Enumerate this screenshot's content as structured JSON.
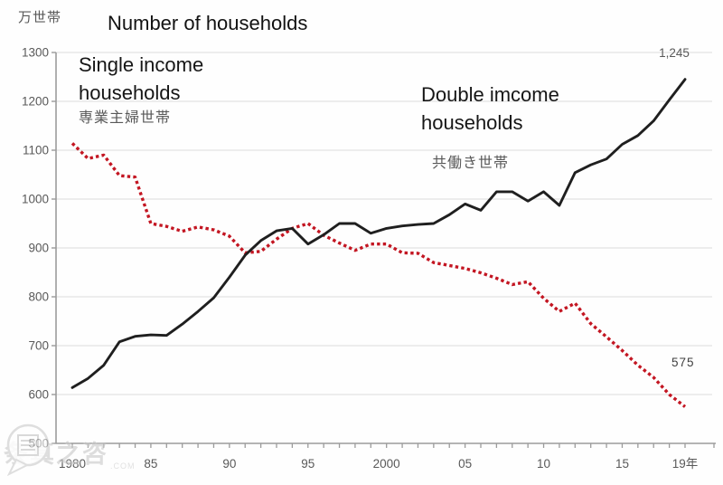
{
  "chart": {
    "unit_label": "万世帯",
    "title": "Number of households",
    "labels": {
      "single_en": "Single income\nhouseholds",
      "single_jp": "専業主婦世帯",
      "double_en": "Double imcome\nhouseholds",
      "double_jp": "共働き世帯"
    },
    "annotations": {
      "double_final": "1,245",
      "single_final": "575"
    },
    "colors": {
      "single_series": "#c31622",
      "double_series": "#1f1f1f",
      "gridline": "#dcdcdc",
      "axis": "#9b9b9b",
      "tick_text": "#595959"
    }
  },
  "watermark": {
    "text": "条真之咨",
    "suffix": ".COM"
  },
  "chart_data": {
    "type": "line",
    "title": "Number of households",
    "ylabel_unit": "万世帯 (10,000 households)",
    "grid": "horizontal",
    "legend": "inline text labels, no legend box",
    "ylim": [
      500,
      1300
    ],
    "ytick_step": 100,
    "x": [
      1980,
      1981,
      1982,
      1983,
      1984,
      1985,
      1986,
      1987,
      1988,
      1989,
      1990,
      1991,
      1992,
      1993,
      1994,
      1995,
      1996,
      1997,
      1998,
      1999,
      2000,
      2001,
      2002,
      2003,
      2004,
      2005,
      2006,
      2007,
      2008,
      2009,
      2010,
      2011,
      2012,
      2013,
      2014,
      2015,
      2016,
      2017,
      2018,
      2019
    ],
    "x_tick_labels": [
      {
        "index": 0,
        "label": "1980"
      },
      {
        "index": 5,
        "label": "85"
      },
      {
        "index": 10,
        "label": "90"
      },
      {
        "index": 15,
        "label": "95"
      },
      {
        "index": 20,
        "label": "2000"
      },
      {
        "index": 25,
        "label": "05"
      },
      {
        "index": 30,
        "label": "10"
      },
      {
        "index": 35,
        "label": "15"
      },
      {
        "index": 39,
        "label": "19年"
      }
    ],
    "series": [
      {
        "name": "専業主婦世帯 (Single income households)",
        "style": "dashed",
        "color": "#c31622",
        "final_value_label": "575",
        "values": [
          1114,
          1083,
          1090,
          1048,
          1045,
          950,
          944,
          934,
          943,
          937,
          924,
          890,
          893,
          918,
          940,
          950,
          926,
          910,
          895,
          908,
          908,
          890,
          889,
          870,
          864,
          858,
          849,
          838,
          825,
          831,
          797,
          770,
          787,
          745,
          718,
          690,
          660,
          635,
          600,
          575
        ]
      },
      {
        "name": "共働き世帯 (Double income households)",
        "style": "solid",
        "color": "#1f1f1f",
        "final_value_label": "1,245",
        "values": [
          614,
          633,
          660,
          708,
          719,
          722,
          721,
          744,
          770,
          798,
          840,
          885,
          915,
          935,
          940,
          908,
          927,
          950,
          950,
          930,
          940,
          945,
          948,
          950,
          968,
          990,
          977,
          1015,
          1015,
          996,
          1015,
          987,
          1054,
          1070,
          1082,
          1112,
          1130,
          1160,
          1203,
          1245
        ]
      }
    ]
  }
}
